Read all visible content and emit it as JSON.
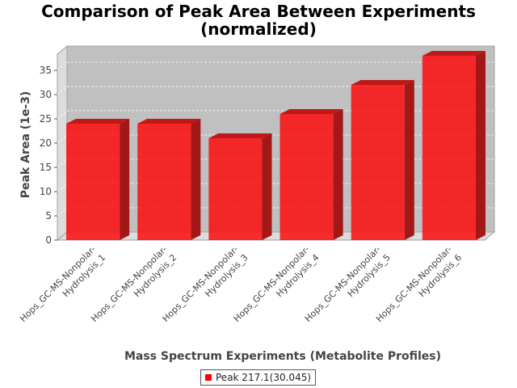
{
  "chart_data": {
    "type": "bar",
    "title": "Comparison of Peak Area Between Experiments",
    "subtitle": "(normalized)",
    "xlabel": "Mass Spectrum Experiments (Metabolite Profiles)",
    "ylabel": "Peak Area (1e-3)",
    "categories": [
      [
        "Hops_GC-MS-Nonpolar-",
        "Hydrolysis_1"
      ],
      [
        "Hops_GC-MS-Nonpolar-",
        "Hydrolysis_2"
      ],
      [
        "Hops_GC-MS-Nonpolar-",
        "Hydrolysis_3"
      ],
      [
        "Hops_GC-MS-Nonpolar-",
        "Hydrolysis_4"
      ],
      [
        "Hops_GC-MS-Nonpolar-",
        "Hydrolysis_5"
      ],
      [
        "Hops_GC-MS-Nonpolar-",
        "Hydrolysis_6"
      ]
    ],
    "series": [
      {
        "name": "Peak 217.1(30.045)",
        "values": [
          24,
          24,
          21,
          26,
          32,
          38
        ],
        "color": "#ff0000"
      }
    ],
    "ylim": [
      0,
      40
    ],
    "yticks": [
      0,
      5,
      10,
      15,
      20,
      25,
      30,
      35
    ],
    "grid": true,
    "legend_position": "bottom",
    "style": "3d-bar"
  }
}
